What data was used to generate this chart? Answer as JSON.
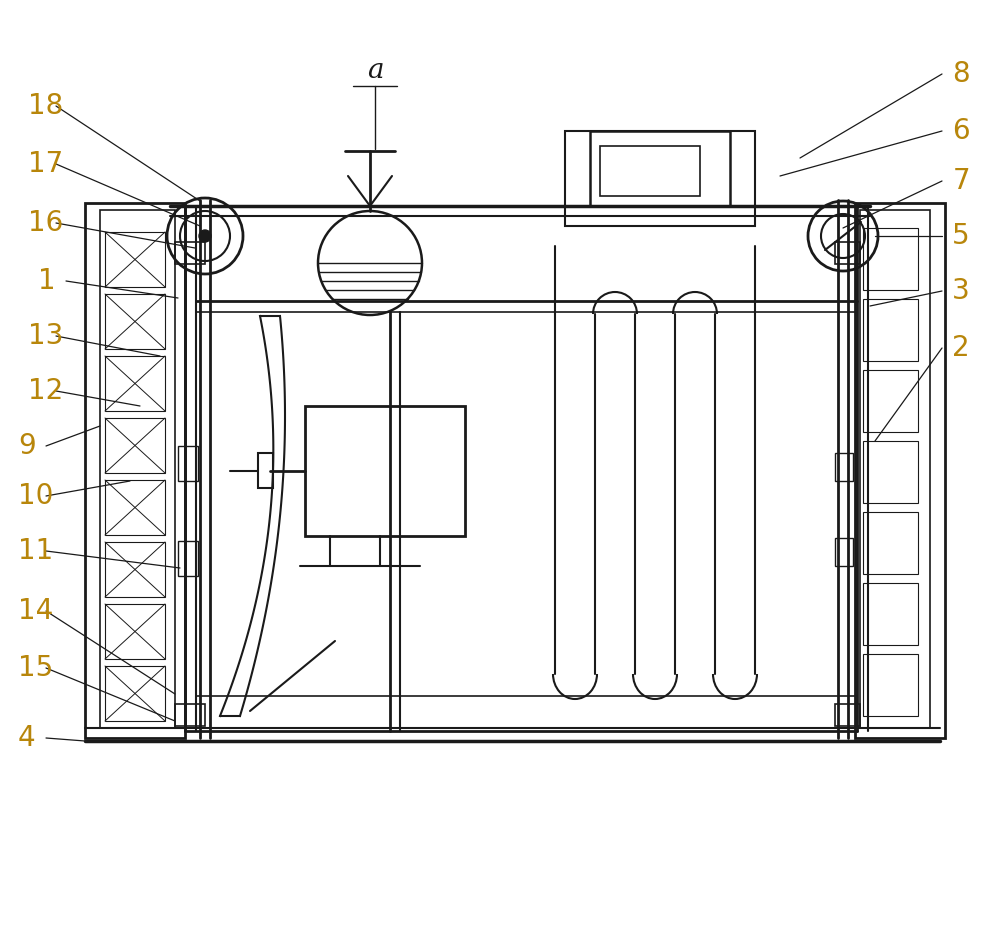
{
  "bg_color": "#ffffff",
  "line_color": "#1a1a1a",
  "label_color": "#b8860b",
  "fig_width": 10.0,
  "fig_height": 9.26
}
